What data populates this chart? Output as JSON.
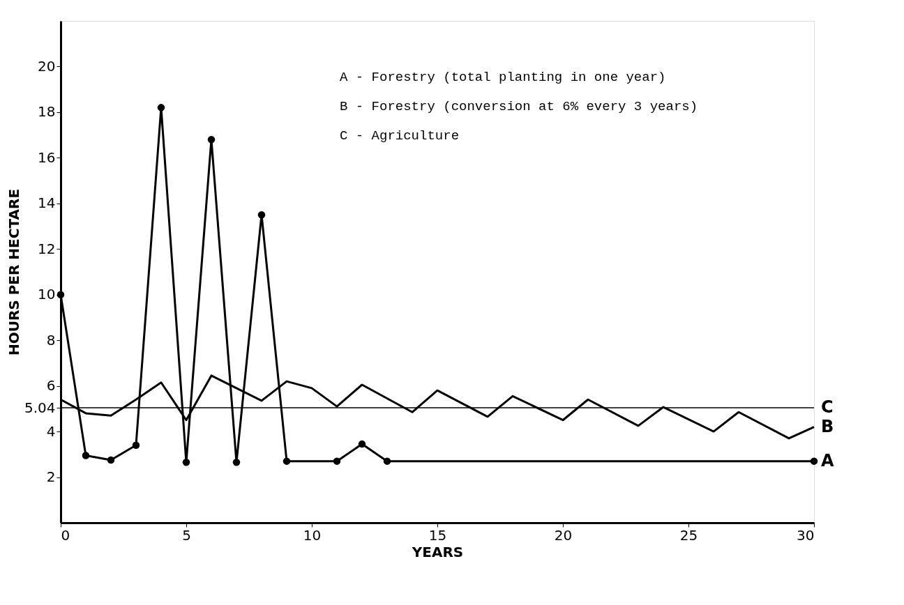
{
  "chart_data": {
    "type": "line",
    "xlabel": "YEARS",
    "ylabel": "HOURS PER HECTARE",
    "xlim": [
      0,
      30
    ],
    "xticks": [
      0,
      5,
      10,
      15,
      20,
      25,
      30
    ],
    "ylim": [
      0,
      22
    ],
    "yticks": [
      2,
      4,
      5.04,
      6,
      8,
      10,
      12,
      14,
      16,
      18,
      20
    ],
    "annotations": [
      "A    -   Forestry (total planting in one year)",
      "B    -   Forestry (conversion at 6% every 3 years)",
      "C    -   Agriculture"
    ],
    "series": [
      {
        "name": "A",
        "color": "#000000",
        "marker": "circle",
        "x": [
          0,
          1,
          2,
          3,
          4,
          5,
          6,
          7,
          8,
          9,
          11,
          12,
          13,
          30
        ],
        "values": [
          10,
          2.95,
          2.75,
          3.4,
          18.2,
          2.65,
          16.8,
          2.65,
          13.5,
          2.7,
          2.7,
          3.45,
          2.7,
          2.7
        ]
      },
      {
        "name": "B",
        "color": "#000000",
        "marker": "none",
        "x": [
          0,
          1,
          2,
          3,
          4,
          5,
          6,
          7,
          8,
          9,
          10,
          11,
          12,
          14,
          15,
          17,
          18,
          20,
          21,
          23,
          24,
          26,
          27,
          29,
          30
        ],
        "values": [
          5.4,
          4.8,
          4.7,
          5.4,
          6.15,
          4.5,
          6.45,
          5.9,
          5.35,
          6.2,
          5.9,
          5.1,
          6.05,
          4.85,
          5.8,
          4.65,
          5.55,
          4.5,
          5.4,
          4.25,
          5.07,
          4.0,
          4.85,
          3.7,
          4.2
        ]
      },
      {
        "name": "C",
        "color": "#000000",
        "marker": "none",
        "x": [
          0,
          30
        ],
        "values": [
          5.04,
          5.04
        ]
      }
    ]
  }
}
